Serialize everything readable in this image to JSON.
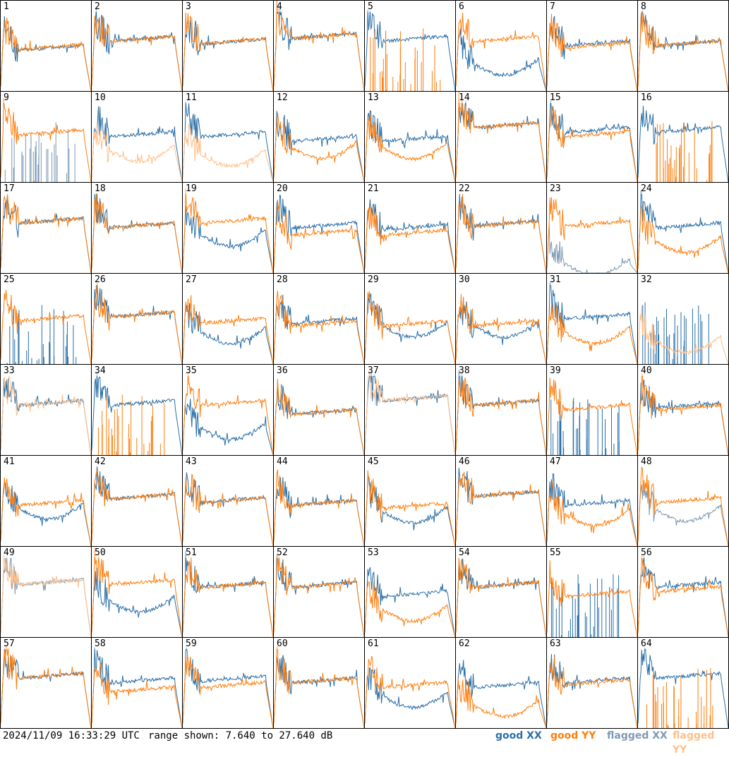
{
  "chart_data": {
    "type": "line",
    "title": "",
    "panels": 64,
    "panel_labels": [
      "1",
      "2",
      "3",
      "4",
      "5",
      "6",
      "7",
      "8",
      "9",
      "10",
      "11",
      "12",
      "13",
      "14",
      "15",
      "16",
      "17",
      "18",
      "19",
      "20",
      "21",
      "22",
      "23",
      "24",
      "25",
      "26",
      "27",
      "28",
      "29",
      "30",
      "31",
      "32",
      "33",
      "34",
      "35",
      "36",
      "37",
      "38",
      "39",
      "40",
      "41",
      "42",
      "43",
      "44",
      "45",
      "46",
      "47",
      "48",
      "49",
      "50",
      "51",
      "52",
      "53",
      "54",
      "55",
      "56",
      "57",
      "58",
      "59",
      "60",
      "61",
      "62",
      "63",
      "64"
    ],
    "series_styles": {
      "good_xx": "#2a6fa8",
      "good_yy": "#ff7f0e",
      "flagged_xx": "#7f9ab4",
      "flagged_yy": "#ffc08a"
    },
    "ylim_db": [
      7.64,
      27.64
    ],
    "flagged_xx_panels": [
      9,
      23,
      48,
      49
    ],
    "flagged_yy_panels": [
      10,
      11,
      32,
      33,
      37,
      49
    ],
    "panel_levels": [
      {
        "p": 1,
        "xx": 0.45,
        "yy": 0.46
      },
      {
        "p": 2,
        "xx": 0.55,
        "yy": 0.55
      },
      {
        "p": 3,
        "xx": 0.52,
        "yy": 0.52
      },
      {
        "p": 4,
        "xx": 0.58,
        "yy": 0.58
      },
      {
        "p": 5,
        "xx": 0.55,
        "yy": 0.0
      },
      {
        "p": 6,
        "xx": 0.3,
        "yy": 0.55
      },
      {
        "p": 7,
        "xx": 0.5,
        "yy": 0.48
      },
      {
        "p": 8,
        "xx": 0.5,
        "yy": 0.5
      },
      {
        "p": 9,
        "xx": 0.0,
        "yy": 0.52
      },
      {
        "p": 10,
        "xx": 0.5,
        "yy": 0.35
      },
      {
        "p": 11,
        "xx": 0.5,
        "yy": 0.3
      },
      {
        "p": 12,
        "xx": 0.45,
        "yy": 0.38
      },
      {
        "p": 13,
        "xx": 0.45,
        "yy": 0.38
      },
      {
        "p": 14,
        "xx": 0.6,
        "yy": 0.6
      },
      {
        "p": 15,
        "xx": 0.55,
        "yy": 0.5
      },
      {
        "p": 16,
        "xx": 0.55,
        "yy": 0.0
      },
      {
        "p": 17,
        "xx": 0.55,
        "yy": 0.55
      },
      {
        "p": 18,
        "xx": 0.5,
        "yy": 0.5
      },
      {
        "p": 19,
        "xx": 0.42,
        "yy": 0.55
      },
      {
        "p": 20,
        "xx": 0.5,
        "yy": 0.42
      },
      {
        "p": 21,
        "xx": 0.48,
        "yy": 0.42
      },
      {
        "p": 22,
        "xx": 0.52,
        "yy": 0.52
      },
      {
        "p": 23,
        "xx": 0.1,
        "yy": 0.52
      },
      {
        "p": 24,
        "xx": 0.5,
        "yy": 0.35
      },
      {
        "p": 25,
        "xx": 0.0,
        "yy": 0.48
      },
      {
        "p": 26,
        "xx": 0.52,
        "yy": 0.52
      },
      {
        "p": 27,
        "xx": 0.35,
        "yy": 0.45
      },
      {
        "p": 28,
        "xx": 0.45,
        "yy": 0.42
      },
      {
        "p": 29,
        "xx": 0.42,
        "yy": 0.42
      },
      {
        "p": 30,
        "xx": 0.42,
        "yy": 0.42
      },
      {
        "p": 31,
        "xx": 0.5,
        "yy": 0.35
      },
      {
        "p": 32,
        "xx": 0.0,
        "yy": 0.25
      },
      {
        "p": 33,
        "xx": 0.55,
        "yy": 0.55
      },
      {
        "p": 34,
        "xx": 0.55,
        "yy": 0.0
      },
      {
        "p": 35,
        "xx": 0.3,
        "yy": 0.55
      },
      {
        "p": 36,
        "xx": 0.45,
        "yy": 0.45
      },
      {
        "p": 37,
        "xx": 0.6,
        "yy": 0.6
      },
      {
        "p": 38,
        "xx": 0.55,
        "yy": 0.55
      },
      {
        "p": 39,
        "xx": 0.0,
        "yy": 0.5
      },
      {
        "p": 40,
        "xx": 0.52,
        "yy": 0.5
      },
      {
        "p": 41,
        "xx": 0.42,
        "yy": 0.45
      },
      {
        "p": 42,
        "xx": 0.52,
        "yy": 0.52
      },
      {
        "p": 43,
        "xx": 0.48,
        "yy": 0.48
      },
      {
        "p": 44,
        "xx": 0.45,
        "yy": 0.45
      },
      {
        "p": 45,
        "xx": 0.38,
        "yy": 0.42
      },
      {
        "p": 46,
        "xx": 0.55,
        "yy": 0.55
      },
      {
        "p": 47,
        "xx": 0.45,
        "yy": 0.35
      },
      {
        "p": 48,
        "xx": 0.4,
        "yy": 0.48
      },
      {
        "p": 49,
        "xx": 0.58,
        "yy": 0.58
      },
      {
        "p": 50,
        "xx": 0.4,
        "yy": 0.58
      },
      {
        "p": 51,
        "xx": 0.55,
        "yy": 0.55
      },
      {
        "p": 52,
        "xx": 0.55,
        "yy": 0.55
      },
      {
        "p": 53,
        "xx": 0.45,
        "yy": 0.3
      },
      {
        "p": 54,
        "xx": 0.55,
        "yy": 0.55
      },
      {
        "p": 55,
        "xx": 0.0,
        "yy": 0.45
      },
      {
        "p": 56,
        "xx": 0.55,
        "yy": 0.5
      },
      {
        "p": 57,
        "xx": 0.55,
        "yy": 0.55
      },
      {
        "p": 58,
        "xx": 0.5,
        "yy": 0.4
      },
      {
        "p": 59,
        "xx": 0.52,
        "yy": 0.45
      },
      {
        "p": 60,
        "xx": 0.5,
        "yy": 0.5
      },
      {
        "p": 61,
        "xx": 0.35,
        "yy": 0.45
      },
      {
        "p": 62,
        "xx": 0.45,
        "yy": 0.25
      },
      {
        "p": 63,
        "xx": 0.5,
        "yy": 0.48
      },
      {
        "p": 64,
        "xx": 0.55,
        "yy": 0.0
      }
    ]
  },
  "footer": {
    "timestamp": "2024/11/09 16:33:29 UTC",
    "range_text": "range shown: 7.640 to 27.640 dB",
    "legend": {
      "good_xx": "good XX",
      "good_yy": "good YY",
      "flagged_xx": "flagged XX",
      "flagged_yy": "flagged YY"
    }
  }
}
